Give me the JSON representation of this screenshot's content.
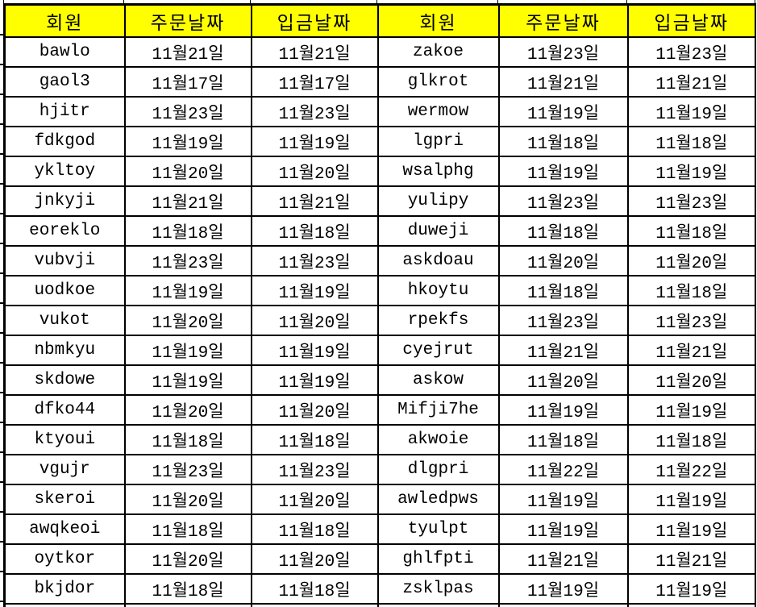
{
  "table": {
    "headers": [
      "회원",
      "주문날짜",
      "입금날짜",
      "회원",
      "주문날짜",
      "입금날짜"
    ],
    "rows": [
      [
        "bawlo",
        "11월21일",
        "11월21일",
        "zakoe",
        "11월23일",
        "11월23일"
      ],
      [
        "gaol3",
        "11월17일",
        "11월17일",
        "glkrot",
        "11월21일",
        "11월21일"
      ],
      [
        "hjitr",
        "11월23일",
        "11월23일",
        "wermow",
        "11월19일",
        "11월19일"
      ],
      [
        "fdkgod",
        "11월19일",
        "11월19일",
        "lgpri",
        "11월18일",
        "11월18일"
      ],
      [
        "ykltoy",
        "11월20일",
        "11월20일",
        "wsalphg",
        "11월19일",
        "11월19일"
      ],
      [
        "jnkyji",
        "11월21일",
        "11월21일",
        "yulipy",
        "11월23일",
        "11월23일"
      ],
      [
        "eoreklo",
        "11월18일",
        "11월18일",
        "duweji",
        "11월18일",
        "11월18일"
      ],
      [
        "vubvji",
        "11월23일",
        "11월23일",
        "askdoau",
        "11월20일",
        "11월20일"
      ],
      [
        "uodkoe",
        "11월19일",
        "11월19일",
        "hkoytu",
        "11월18일",
        "11월18일"
      ],
      [
        "vukot",
        "11월20일",
        "11월20일",
        "rpekfs",
        "11월23일",
        "11월23일"
      ],
      [
        "nbmkyu",
        "11월19일",
        "11월19일",
        "cyejrut",
        "11월21일",
        "11월21일"
      ],
      [
        "skdowe",
        "11월19일",
        "11월19일",
        "askow",
        "11월20일",
        "11월20일"
      ],
      [
        "dfko44",
        "11월20일",
        "11월20일",
        "Mifji7he",
        "11월19일",
        "11월19일"
      ],
      [
        "ktyoui",
        "11월18일",
        "11월18일",
        "akwoie",
        "11월18일",
        "11월18일"
      ],
      [
        "vgujr",
        "11월23일",
        "11월23일",
        "dlgpri",
        "11월22일",
        "11월22일"
      ],
      [
        "skeroi",
        "11월20일",
        "11월20일",
        "awledpws",
        "11월19일",
        "11월19일"
      ],
      [
        "awqkeoi",
        "11월18일",
        "11월18일",
        "tyulpt",
        "11월19일",
        "11월19일"
      ],
      [
        "oytkor",
        "11월20일",
        "11월20일",
        "ghlfpti",
        "11월21일",
        "11월21일"
      ],
      [
        "bkjdor",
        "11월18일",
        "11월18일",
        "zsklpas",
        "11월19일",
        "11월19일"
      ]
    ]
  },
  "colors": {
    "header_bg": "#FFFF00",
    "border": "#000000",
    "text": "#000000"
  }
}
